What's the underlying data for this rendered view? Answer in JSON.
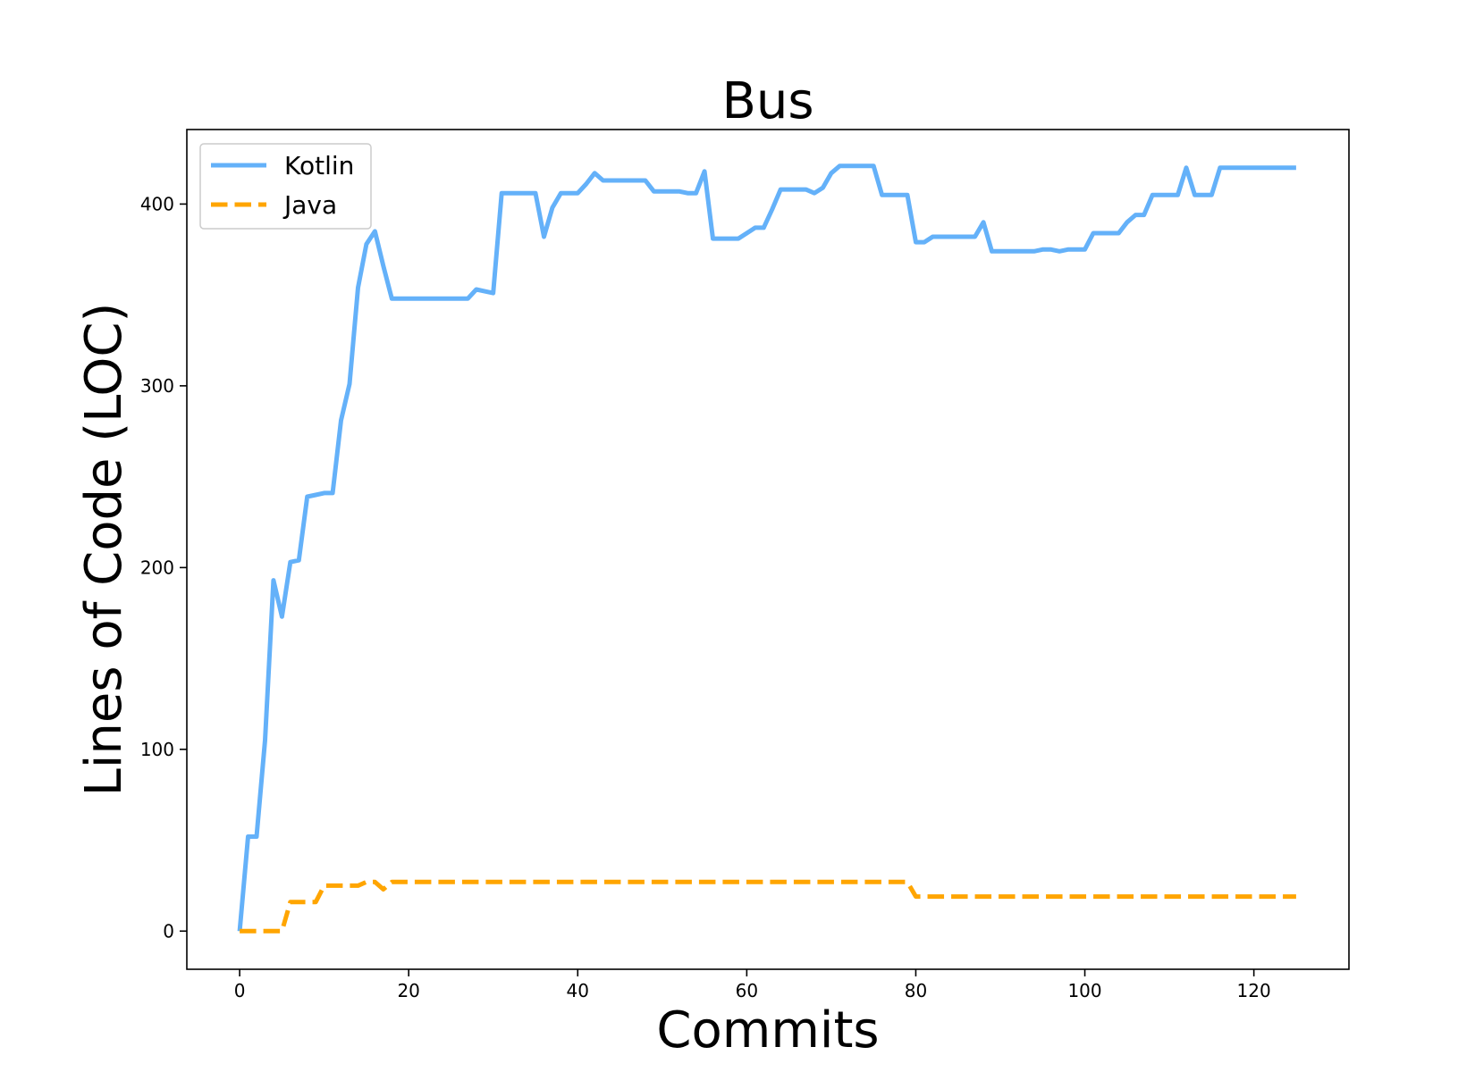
{
  "chart_data": {
    "type": "line",
    "title": "Bus",
    "xlabel": "Commits",
    "ylabel": "Lines of Code (LOC)",
    "xlim": [
      -6.25,
      131.25
    ],
    "ylim": [
      -21,
      441
    ],
    "xticks": [
      0,
      20,
      40,
      60,
      80,
      100,
      120
    ],
    "yticks": [
      0,
      100,
      200,
      300,
      400
    ],
    "grid": false,
    "legend_position": "top-left",
    "series": [
      {
        "name": "Kotlin",
        "color": "#64b1f9",
        "style": "solid",
        "points": [
          [
            0,
            0
          ],
          [
            1,
            52
          ],
          [
            2,
            52
          ],
          [
            3,
            105
          ],
          [
            4,
            193
          ],
          [
            5,
            173
          ],
          [
            6,
            203
          ],
          [
            7,
            204
          ],
          [
            8,
            239
          ],
          [
            9,
            240
          ],
          [
            10,
            241
          ],
          [
            11,
            241
          ],
          [
            12,
            281
          ],
          [
            13,
            301
          ],
          [
            14,
            354
          ],
          [
            15,
            378
          ],
          [
            16,
            385
          ],
          [
            17,
            366
          ],
          [
            18,
            348
          ],
          [
            19,
            348
          ],
          [
            20,
            348
          ],
          [
            21,
            348
          ],
          [
            22,
            348
          ],
          [
            23,
            348
          ],
          [
            24,
            348
          ],
          [
            25,
            348
          ],
          [
            26,
            348
          ],
          [
            27,
            348
          ],
          [
            28,
            353
          ],
          [
            29,
            352
          ],
          [
            30,
            351
          ],
          [
            31,
            406
          ],
          [
            32,
            406
          ],
          [
            33,
            406
          ],
          [
            34,
            406
          ],
          [
            35,
            406
          ],
          [
            36,
            382
          ],
          [
            37,
            398
          ],
          [
            38,
            406
          ],
          [
            39,
            406
          ],
          [
            40,
            406
          ],
          [
            41,
            411
          ],
          [
            42,
            417
          ],
          [
            43,
            413
          ],
          [
            44,
            413
          ],
          [
            45,
            413
          ],
          [
            46,
            413
          ],
          [
            47,
            413
          ],
          [
            48,
            413
          ],
          [
            49,
            407
          ],
          [
            50,
            407
          ],
          [
            51,
            407
          ],
          [
            52,
            407
          ],
          [
            53,
            406
          ],
          [
            54,
            406
          ],
          [
            55,
            418
          ],
          [
            56,
            381
          ],
          [
            57,
            381
          ],
          [
            58,
            381
          ],
          [
            59,
            381
          ],
          [
            60,
            384
          ],
          [
            61,
            387
          ],
          [
            62,
            387
          ],
          [
            63,
            397
          ],
          [
            64,
            408
          ],
          [
            65,
            408
          ],
          [
            66,
            408
          ],
          [
            67,
            408
          ],
          [
            68,
            406
          ],
          [
            69,
            409
          ],
          [
            70,
            417
          ],
          [
            71,
            421
          ],
          [
            72,
            421
          ],
          [
            73,
            421
          ],
          [
            74,
            421
          ],
          [
            75,
            421
          ],
          [
            76,
            405
          ],
          [
            77,
            405
          ],
          [
            78,
            405
          ],
          [
            79,
            405
          ],
          [
            80,
            379
          ],
          [
            81,
            379
          ],
          [
            82,
            382
          ],
          [
            83,
            382
          ],
          [
            84,
            382
          ],
          [
            85,
            382
          ],
          [
            86,
            382
          ],
          [
            87,
            382
          ],
          [
            88,
            390
          ],
          [
            89,
            374
          ],
          [
            90,
            374
          ],
          [
            91,
            374
          ],
          [
            92,
            374
          ],
          [
            93,
            374
          ],
          [
            94,
            374
          ],
          [
            95,
            375
          ],
          [
            96,
            375
          ],
          [
            97,
            374
          ],
          [
            98,
            375
          ],
          [
            99,
            375
          ],
          [
            100,
            375
          ],
          [
            101,
            384
          ],
          [
            102,
            384
          ],
          [
            103,
            384
          ],
          [
            104,
            384
          ],
          [
            105,
            390
          ],
          [
            106,
            394
          ],
          [
            107,
            394
          ],
          [
            108,
            405
          ],
          [
            109,
            405
          ],
          [
            110,
            405
          ],
          [
            111,
            405
          ],
          [
            112,
            420
          ],
          [
            113,
            405
          ],
          [
            114,
            405
          ],
          [
            115,
            405
          ],
          [
            116,
            420
          ],
          [
            117,
            420
          ],
          [
            118,
            420
          ],
          [
            119,
            420
          ],
          [
            120,
            420
          ],
          [
            121,
            420
          ],
          [
            122,
            420
          ],
          [
            123,
            420
          ],
          [
            124,
            420
          ],
          [
            125,
            420
          ]
        ]
      },
      {
        "name": "Java",
        "color": "#ffa500",
        "style": "dashed",
        "points": [
          [
            0,
            0
          ],
          [
            1,
            0
          ],
          [
            2,
            0
          ],
          [
            3,
            0
          ],
          [
            4,
            0
          ],
          [
            5,
            0
          ],
          [
            6,
            16
          ],
          [
            7,
            16
          ],
          [
            8,
            16
          ],
          [
            9,
            16
          ],
          [
            10,
            25
          ],
          [
            11,
            25
          ],
          [
            12,
            25
          ],
          [
            13,
            25
          ],
          [
            14,
            25
          ],
          [
            15,
            27
          ],
          [
            16,
            27
          ],
          [
            17,
            23
          ],
          [
            18,
            27
          ],
          [
            19,
            27
          ],
          [
            20,
            27
          ],
          [
            30,
            27
          ],
          [
            40,
            27
          ],
          [
            50,
            27
          ],
          [
            60,
            27
          ],
          [
            70,
            27
          ],
          [
            79,
            27
          ],
          [
            80,
            19
          ],
          [
            90,
            19
          ],
          [
            100,
            19
          ],
          [
            110,
            19
          ],
          [
            120,
            19
          ],
          [
            125,
            19
          ]
        ]
      }
    ]
  }
}
